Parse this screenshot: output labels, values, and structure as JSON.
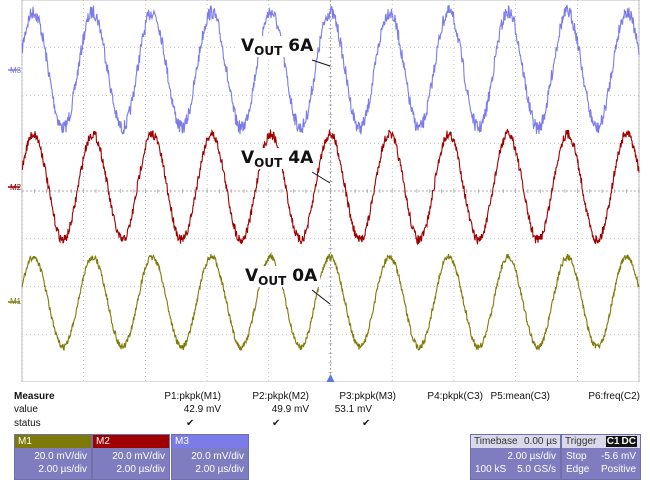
{
  "waveform_labels": [
    {
      "main": "V",
      "sub": "OUT",
      "value": "6A"
    },
    {
      "main": "V",
      "sub": "OUT",
      "value": "4A"
    },
    {
      "main": "V",
      "sub": "OUT",
      "value": "0A"
    }
  ],
  "channel_markers": [
    "M3",
    "M2",
    "M1"
  ],
  "colors": {
    "m3": "#7b7bea",
    "m2": "#a00000",
    "m1": "#7d7a08",
    "grid": "#9a9a9a",
    "trigger": "#5a7ad8",
    "panel": "#7d7dc0"
  },
  "measure": {
    "title": "Measure",
    "row_labels": [
      "value",
      "status"
    ],
    "params": [
      "P1:pkpk(M1)",
      "P2:pkpk(M2)",
      "P3:pkpk(M3)",
      "P4:pkpk(C3)",
      "P5:mean(C3)",
      "P6:freq(C2)"
    ],
    "values": [
      "42.9 mV",
      "49.9 mV",
      "53.1 mV",
      "",
      "",
      ""
    ],
    "status": [
      "✔",
      "✔",
      "✔",
      "",
      "",
      ""
    ]
  },
  "channels": [
    {
      "name": "M1",
      "vdiv": "20.0 mV/div",
      "tdiv": "2.00 µs/div",
      "color": "#7d7a08"
    },
    {
      "name": "M2",
      "vdiv": "20.0 mV/div",
      "tdiv": "2.00 µs/div",
      "color": "#a00000"
    },
    {
      "name": "M3",
      "vdiv": "20.0 mV/div",
      "tdiv": "2.00 µs/div",
      "color": "#7b7bea"
    }
  ],
  "timebase": {
    "label": "Timebase",
    "offset": "0.00 µs",
    "tdiv": "2.00 µs/div",
    "samples": "100 kS",
    "rate": "5.0 GS/s"
  },
  "trigger": {
    "label": "Trigger",
    "channel": "C1",
    "coupling": "DC",
    "mode": "Stop",
    "level": "-5.6 mV",
    "type": "Edge",
    "slope": "Positive"
  },
  "waveforms": {
    "cycles": 10.4,
    "m3_noise": 0.12,
    "m2_noise": 0.09,
    "m1_noise": 0.07
  }
}
